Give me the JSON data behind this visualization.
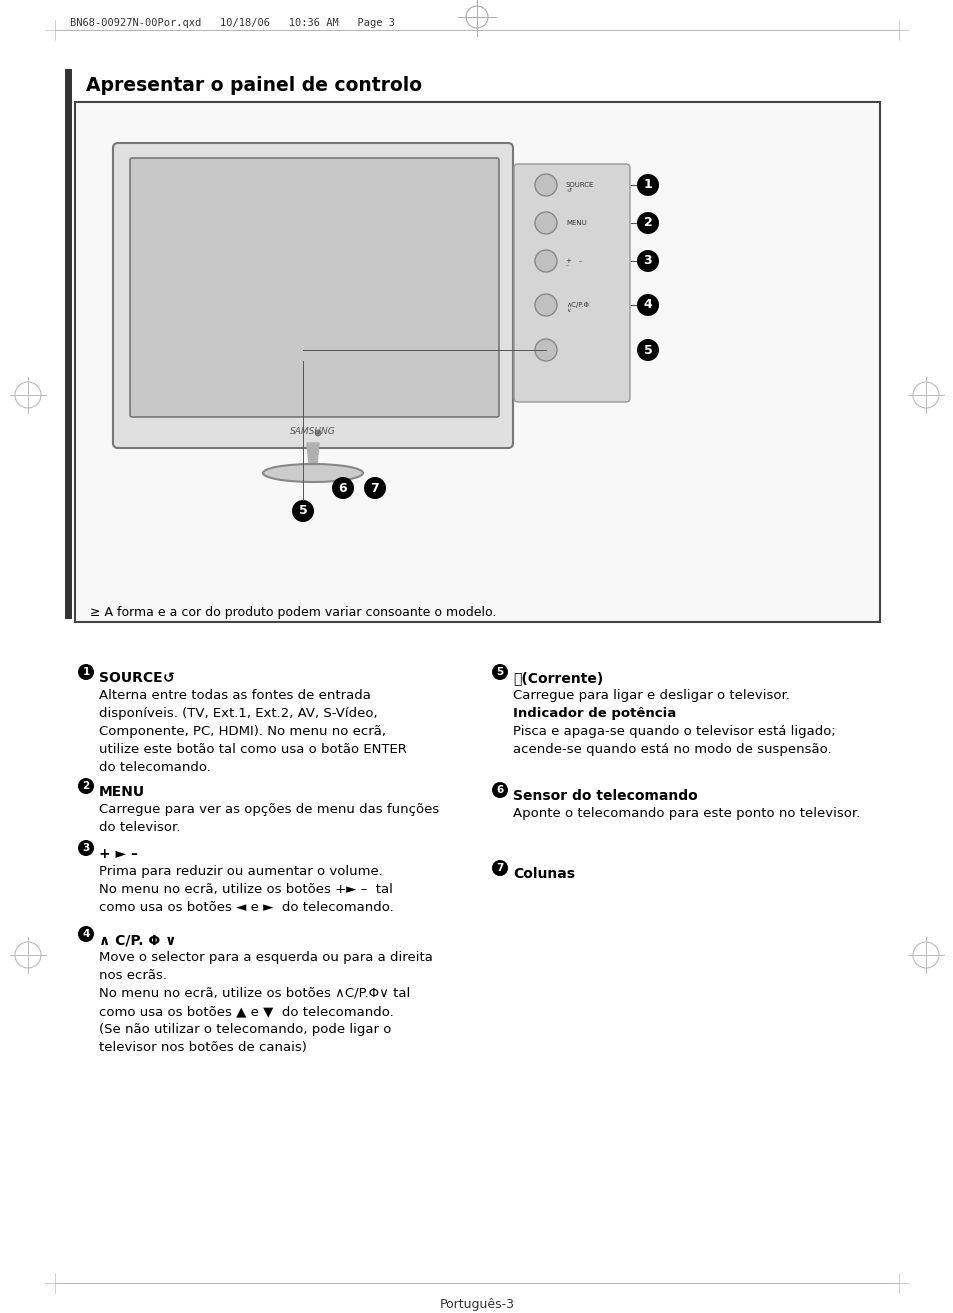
{
  "page_header": "BN68-00927N-00Por.qxd   10/18/06   10:36 AM   Page 3",
  "title": "Apresentar o painel de controlo",
  "note": "≥ A forma e a cor do produto podem variar consoante o modelo.",
  "footer": "Português-3",
  "bg_color": "#ffffff",
  "text_color": "#000000",
  "source_icon": "↺",
  "power_icon": "⏻",
  "up_arrow": "∧",
  "down_arrow": "∨",
  "phi": "Φ",
  "right_tri": "►",
  "left_tri": "◄",
  "up_tri": "▲",
  "down_tri": "▼",
  "dash": "–",
  "items_left": [
    {
      "num": "1",
      "heading_plain": "SOURCE",
      "body": "Alterna entre todas as fontes de entrada\ndisponíveis. (TV, Ext.1, Ext.2, AV, S-Vídeo,\nComponente, PC, HDMI). No menu no ecrã,\nutilize este botão tal como usa o botão ENTER\ndo telecomando."
    },
    {
      "num": "2",
      "heading_plain": "MENU",
      "body": "Carregue para ver as opções de menu das funções\ndo televisor."
    },
    {
      "num": "3",
      "heading_plain": "+ ► –",
      "body": "Prima para reduzir ou aumentar o volume.\nNo menu no ecrã, utilize os botões +► –  tal\ncomo usa os botões ◄ e ►  do telecomando."
    },
    {
      "num": "4",
      "heading_plain": "∧ C/P. Φ ∨",
      "body": "Move o selector para a esquerda ou para a direita\nnos ecrãs.\nNo menu no ecrã, utilize os botões ∧C/P.Φ∨ tal\ncomo usa os botões ▲ e ▼  do telecomando.\n(Se não utilizar o telecomando, pode ligar o\ntelevisor nos botões de canais)"
    }
  ],
  "items_right": [
    {
      "num": "5",
      "heading_plain": "⏻(Corrente)",
      "body_line1": "Carregue para ligar e desligar o televisor.",
      "body_bold": "Indicador de potência",
      "body_line2": "Pisca e apaga-se quando o televisor está ligado;\nacende-se quando está no modo de suspensão."
    },
    {
      "num": "6",
      "heading_plain": "Sensor do telecomando",
      "body": "Aponte o telecomando para este ponto no televisor."
    },
    {
      "num": "7",
      "heading_plain": "Colunas",
      "body": ""
    }
  ]
}
